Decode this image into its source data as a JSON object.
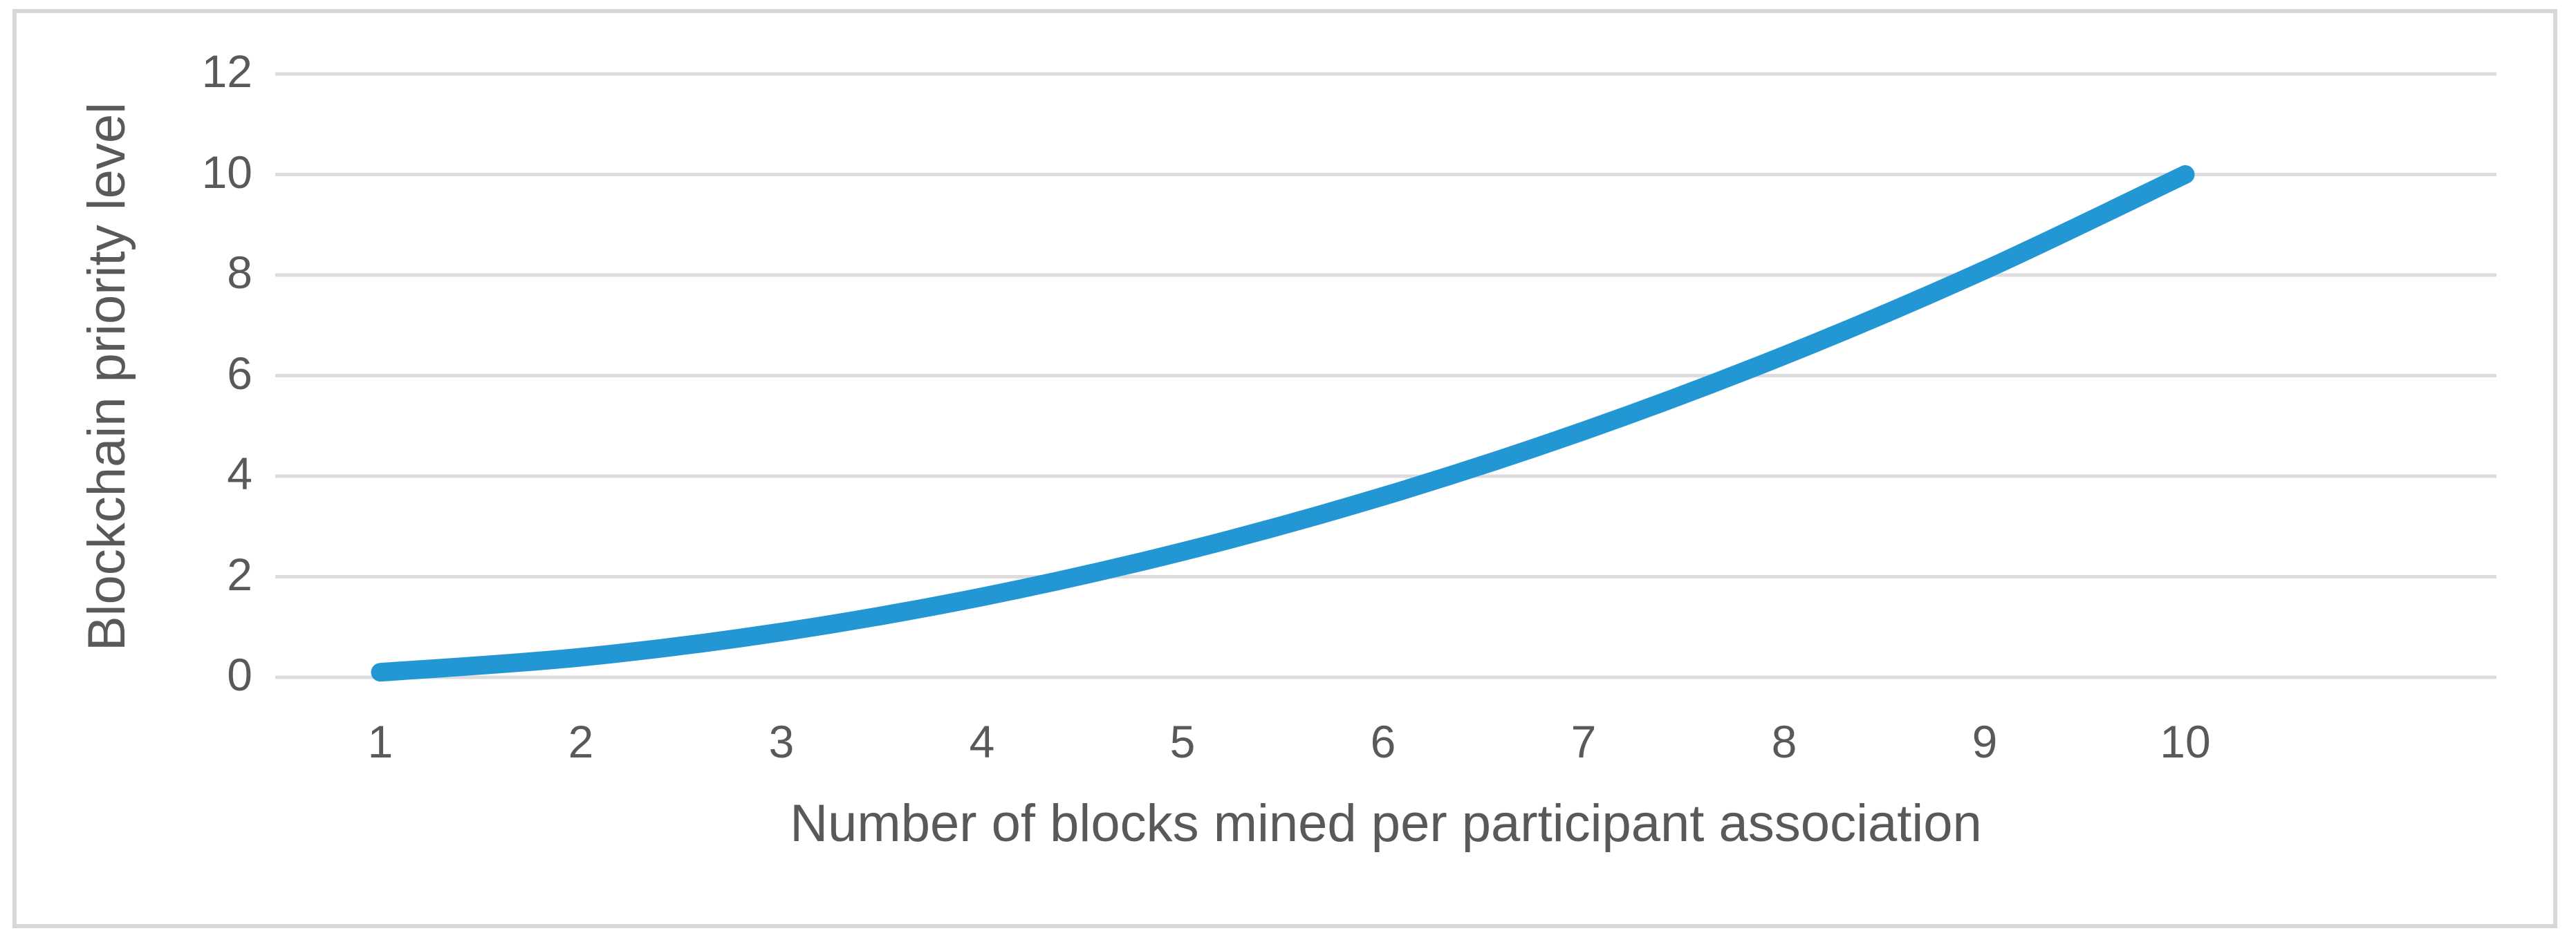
{
  "chart_data": {
    "type": "line",
    "title": "",
    "xlabel": "Number of blocks mined per participant association",
    "ylabel": "Blockchain priority level",
    "x": [
      1,
      2,
      3,
      4,
      5,
      6,
      7,
      8,
      9,
      10
    ],
    "series": [
      {
        "name": "Blockchain priority level",
        "values": [
          0.1,
          0.4,
          0.9,
          1.6,
          2.5,
          3.6,
          4.9,
          6.4,
          8.1,
          10.0
        ]
      }
    ],
    "xticks": [
      "1",
      "2",
      "3",
      "4",
      "5",
      "6",
      "7",
      "8",
      "9",
      "10"
    ],
    "yticks": [
      0,
      2,
      4,
      6,
      8,
      10,
      12
    ],
    "ylim": [
      0,
      12
    ],
    "grid": "horizontal",
    "legend": "none",
    "smooth": true,
    "line_color": "#2397d4",
    "gridline_color": "#dcdcdc",
    "text_color": "#595959",
    "frame_color": "#d7d7d7",
    "background_color": "#ffffff"
  }
}
